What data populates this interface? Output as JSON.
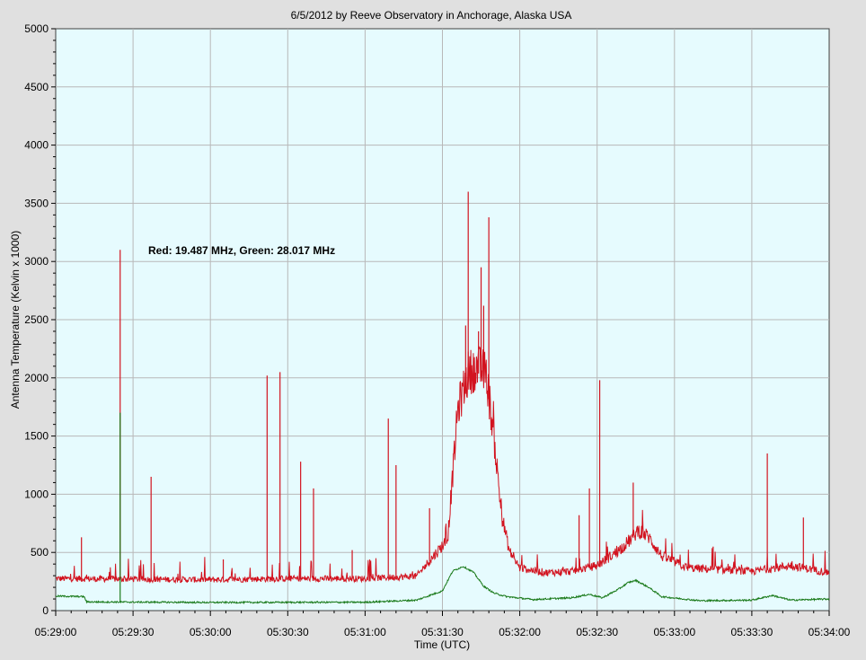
{
  "chart_data": {
    "type": "line",
    "title": "6/5/2012  by  Reeve Observatory  in  Anchorage, Alaska  USA",
    "xlabel": "Time (UTC)",
    "ylabel": "Antenna Temperature (Kelvin x 1000)",
    "annotation": "Red: 19.487 MHz, Green: 28.017 MHz",
    "xlim": [
      "05:29:00",
      "05:34:00"
    ],
    "ylim": [
      0,
      5000
    ],
    "x_ticks": [
      "05:29:00",
      "05:29:30",
      "05:30:00",
      "05:30:30",
      "05:31:00",
      "05:31:30",
      "05:32:00",
      "05:32:30",
      "05:33:00",
      "05:33:30",
      "05:34:00"
    ],
    "y_ticks": [
      0,
      500,
      1000,
      1500,
      2000,
      2500,
      3000,
      3500,
      4000,
      4500,
      5000
    ],
    "grid": true,
    "background": "#e6fbfe",
    "series": [
      {
        "color": "#d2131f",
        "baseline": [
          [
            "05:29:00",
            270
          ],
          [
            "05:30:00",
            260
          ],
          [
            "05:30:30",
            270
          ],
          [
            "05:31:00",
            270
          ],
          [
            "05:31:20",
            290
          ],
          [
            "05:31:32",
            600
          ],
          [
            "05:31:36",
            1700
          ],
          [
            "05:31:40",
            2000
          ],
          [
            "05:31:43",
            2050
          ],
          [
            "05:31:47",
            2000
          ],
          [
            "05:31:50",
            1450
          ],
          [
            "05:31:53",
            800
          ],
          [
            "05:31:56",
            500
          ],
          [
            "05:32:00",
            360
          ],
          [
            "05:32:10",
            320
          ],
          [
            "05:32:20",
            330
          ],
          [
            "05:32:30",
            380
          ],
          [
            "05:32:38",
            500
          ],
          [
            "05:32:43",
            600
          ],
          [
            "05:32:46",
            680
          ],
          [
            "05:32:50",
            620
          ],
          [
            "05:32:55",
            460
          ],
          [
            "05:33:05",
            360
          ],
          [
            "05:33:30",
            330
          ],
          [
            "05:33:45",
            380
          ],
          [
            "05:34:00",
            320
          ]
        ],
        "spikes": [
          [
            "05:29:10",
            630
          ],
          [
            "05:29:25",
            3100
          ],
          [
            "05:29:37",
            1150
          ],
          [
            "05:30:05",
            440
          ],
          [
            "05:30:22",
            2020
          ],
          [
            "05:30:27",
            2050
          ],
          [
            "05:30:35",
            1280
          ],
          [
            "05:30:40",
            1050
          ],
          [
            "05:30:55",
            520
          ],
          [
            "05:31:09",
            1650
          ],
          [
            "05:31:12",
            1250
          ],
          [
            "05:31:25",
            880
          ],
          [
            "05:31:39",
            2450
          ],
          [
            "05:31:40",
            3600
          ],
          [
            "05:31:44",
            2400
          ],
          [
            "05:31:45",
            2950
          ],
          [
            "05:31:46",
            2620
          ],
          [
            "05:31:48",
            3380
          ],
          [
            "05:32:23",
            820
          ],
          [
            "05:32:27",
            1050
          ],
          [
            "05:32:31",
            1980
          ],
          [
            "05:32:44",
            1100
          ],
          [
            "05:33:15",
            550
          ],
          [
            "05:33:36",
            1350
          ],
          [
            "05:33:50",
            800
          ]
        ]
      },
      {
        "color": "#1a7a1a",
        "baseline": [
          [
            "05:29:00",
            125
          ],
          [
            "05:29:11",
            120
          ],
          [
            "05:29:12",
            75
          ],
          [
            "05:30:00",
            70
          ],
          [
            "05:31:00",
            72
          ],
          [
            "05:31:20",
            90
          ],
          [
            "05:31:30",
            170
          ],
          [
            "05:31:34",
            340
          ],
          [
            "05:31:38",
            380
          ],
          [
            "05:31:42",
            330
          ],
          [
            "05:31:46",
            210
          ],
          [
            "05:31:50",
            150
          ],
          [
            "05:31:55",
            120
          ],
          [
            "05:32:05",
            95
          ],
          [
            "05:32:20",
            110
          ],
          [
            "05:32:27",
            140
          ],
          [
            "05:32:32",
            110
          ],
          [
            "05:32:38",
            180
          ],
          [
            "05:32:42",
            240
          ],
          [
            "05:32:45",
            260
          ],
          [
            "05:32:50",
            200
          ],
          [
            "05:32:55",
            120
          ],
          [
            "05:33:10",
            85
          ],
          [
            "05:33:30",
            90
          ],
          [
            "05:33:38",
            130
          ],
          [
            "05:33:45",
            90
          ],
          [
            "05:34:00",
            100
          ]
        ],
        "spikes": [
          [
            "05:29:25",
            1700
          ]
        ]
      }
    ]
  }
}
